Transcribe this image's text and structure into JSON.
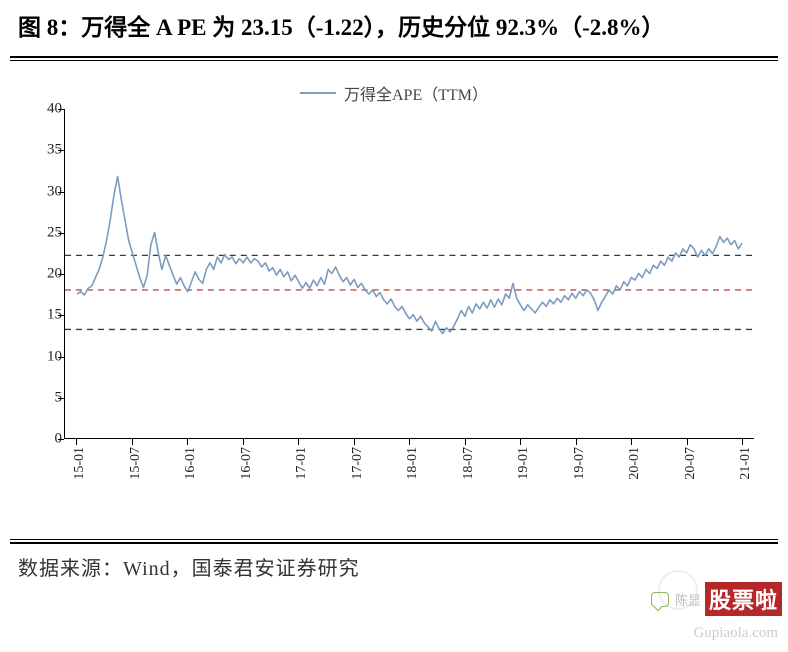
{
  "title_prefix": "图 8：",
  "title_main": "万得全 A PE 为 23.15（-1.22），历史分位 92.3%（-2.8%）",
  "legend_label": "万得全APE（TTM）",
  "source_label": "数据来源：",
  "source_text": "Wind，国泰君安证券研究",
  "watermark": {
    "name": "陈显",
    "brand": "股票啦",
    "url": "Gupiaola.com"
  },
  "chart": {
    "type": "line",
    "line_color": "#7c9cbf",
    "line_width": 1.6,
    "axis_color": "#000000",
    "background_color": "#ffffff",
    "ylim": [
      0,
      40
    ],
    "ytick_step": 5,
    "yticks": [
      0,
      5,
      10,
      15,
      20,
      25,
      30,
      35,
      40
    ],
    "x_categories": [
      "15-01",
      "15-07",
      "16-01",
      "16-07",
      "17-01",
      "17-07",
      "18-01",
      "18-07",
      "19-01",
      "19-07",
      "20-01",
      "20-07",
      "21-01"
    ],
    "reference_lines": [
      {
        "y": 22.2,
        "color": "#2a3a63",
        "dash": "6,5",
        "width": 1.3
      },
      {
        "y": 18.0,
        "color": "#c44a4a",
        "dash": "6,5",
        "width": 1.3
      },
      {
        "y": 13.2,
        "color": "#2a3a63",
        "dash": "6,5",
        "width": 1.3
      }
    ],
    "series": [
      17.5,
      17.8,
      17.4,
      18.2,
      18.5,
      19.5,
      20.5,
      22.0,
      24.0,
      26.5,
      29.5,
      31.8,
      29.0,
      26.5,
      24.0,
      22.5,
      21.0,
      19.5,
      18.3,
      19.8,
      23.5,
      25.0,
      22.5,
      20.5,
      22.2,
      21.0,
      19.8,
      18.7,
      19.5,
      18.5,
      17.8,
      19.0,
      20.2,
      19.3,
      18.8,
      20.5,
      21.3,
      20.5,
      22.0,
      21.3,
      22.3,
      21.7,
      22.0,
      21.2,
      21.8,
      21.3,
      22.0,
      21.3,
      21.8,
      21.5,
      20.8,
      21.3,
      20.3,
      20.7,
      19.8,
      20.5,
      19.6,
      20.2,
      19.1,
      19.8,
      19.0,
      18.2,
      18.9,
      18.2,
      19.2,
      18.5,
      19.5,
      18.7,
      20.5,
      20.0,
      20.8,
      19.8,
      19.0,
      19.5,
      18.6,
      19.3,
      18.3,
      18.8,
      18.0,
      17.5,
      18.0,
      17.2,
      17.7,
      16.8,
      16.3,
      16.9,
      16.0,
      15.5,
      16.0,
      15.1,
      14.5,
      15.0,
      14.2,
      14.8,
      14.0,
      13.5,
      13.0,
      14.2,
      13.3,
      12.7,
      13.4,
      12.9,
      13.6,
      14.5,
      15.5,
      14.8,
      16.0,
      15.2,
      16.3,
      15.7,
      16.5,
      15.8,
      16.8,
      15.9,
      16.9,
      16.2,
      17.5,
      17.0,
      18.8,
      17.0,
      16.2,
      15.5,
      16.2,
      15.7,
      15.2,
      15.9,
      16.5,
      16.0,
      16.8,
      16.3,
      17.0,
      16.5,
      17.3,
      16.8,
      17.6,
      17.0,
      17.8,
      17.3,
      18.0,
      17.6,
      16.8,
      15.5,
      16.5,
      17.2,
      18.0,
      17.5,
      18.5,
      18.0,
      19.0,
      18.5,
      19.5,
      19.2,
      20.0,
      19.5,
      20.5,
      20.0,
      21.0,
      20.6,
      21.5,
      21.0,
      22.0,
      21.5,
      22.5,
      22.0,
      23.0,
      22.5,
      23.5,
      23.0,
      22.0,
      22.8,
      22.2,
      23.0,
      22.4,
      23.3,
      24.5,
      23.8,
      24.3,
      23.5,
      24.0,
      23.0,
      23.7
    ]
  }
}
